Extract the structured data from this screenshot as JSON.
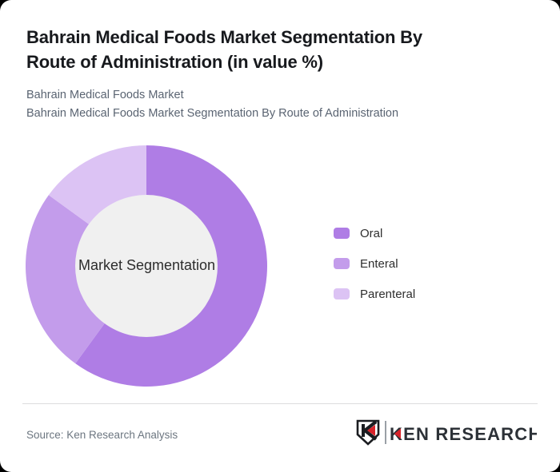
{
  "page": {
    "background_color": "#000000",
    "card_color": "#ffffff"
  },
  "header": {
    "title_lines": [
      "Bahrain Medical Foods Market Segmentation By",
      "Route of Administration (in value %)"
    ],
    "subtitle_lines": [
      "Bahrain Medical Foods Market",
      "Bahrain Medical Foods Market Segmentation By Route of Administration"
    ]
  },
  "chart_data": {
    "type": "pie",
    "subtype": "donut",
    "title": "Bahrain Medical Foods Market Segmentation By Route of Administration (in value %)",
    "center_label": "Market Segmentation",
    "categories": [
      "Oral",
      "Enteral",
      "Parenteral"
    ],
    "values": [
      60,
      25,
      15
    ],
    "value_unit": "value %",
    "colors": [
      "#af7de5",
      "#c39ceb",
      "#dcc3f4"
    ],
    "inner_circle_color": "#f0f0f0",
    "start_angle_deg": 0,
    "direction": "clockwise",
    "legend_position": "right"
  },
  "footer": {
    "source": "Source: Ken Research Analysis",
    "logo_text": "KEN RESEARCH",
    "logo_red": "#d8232a",
    "logo_dark": "#22262b"
  }
}
